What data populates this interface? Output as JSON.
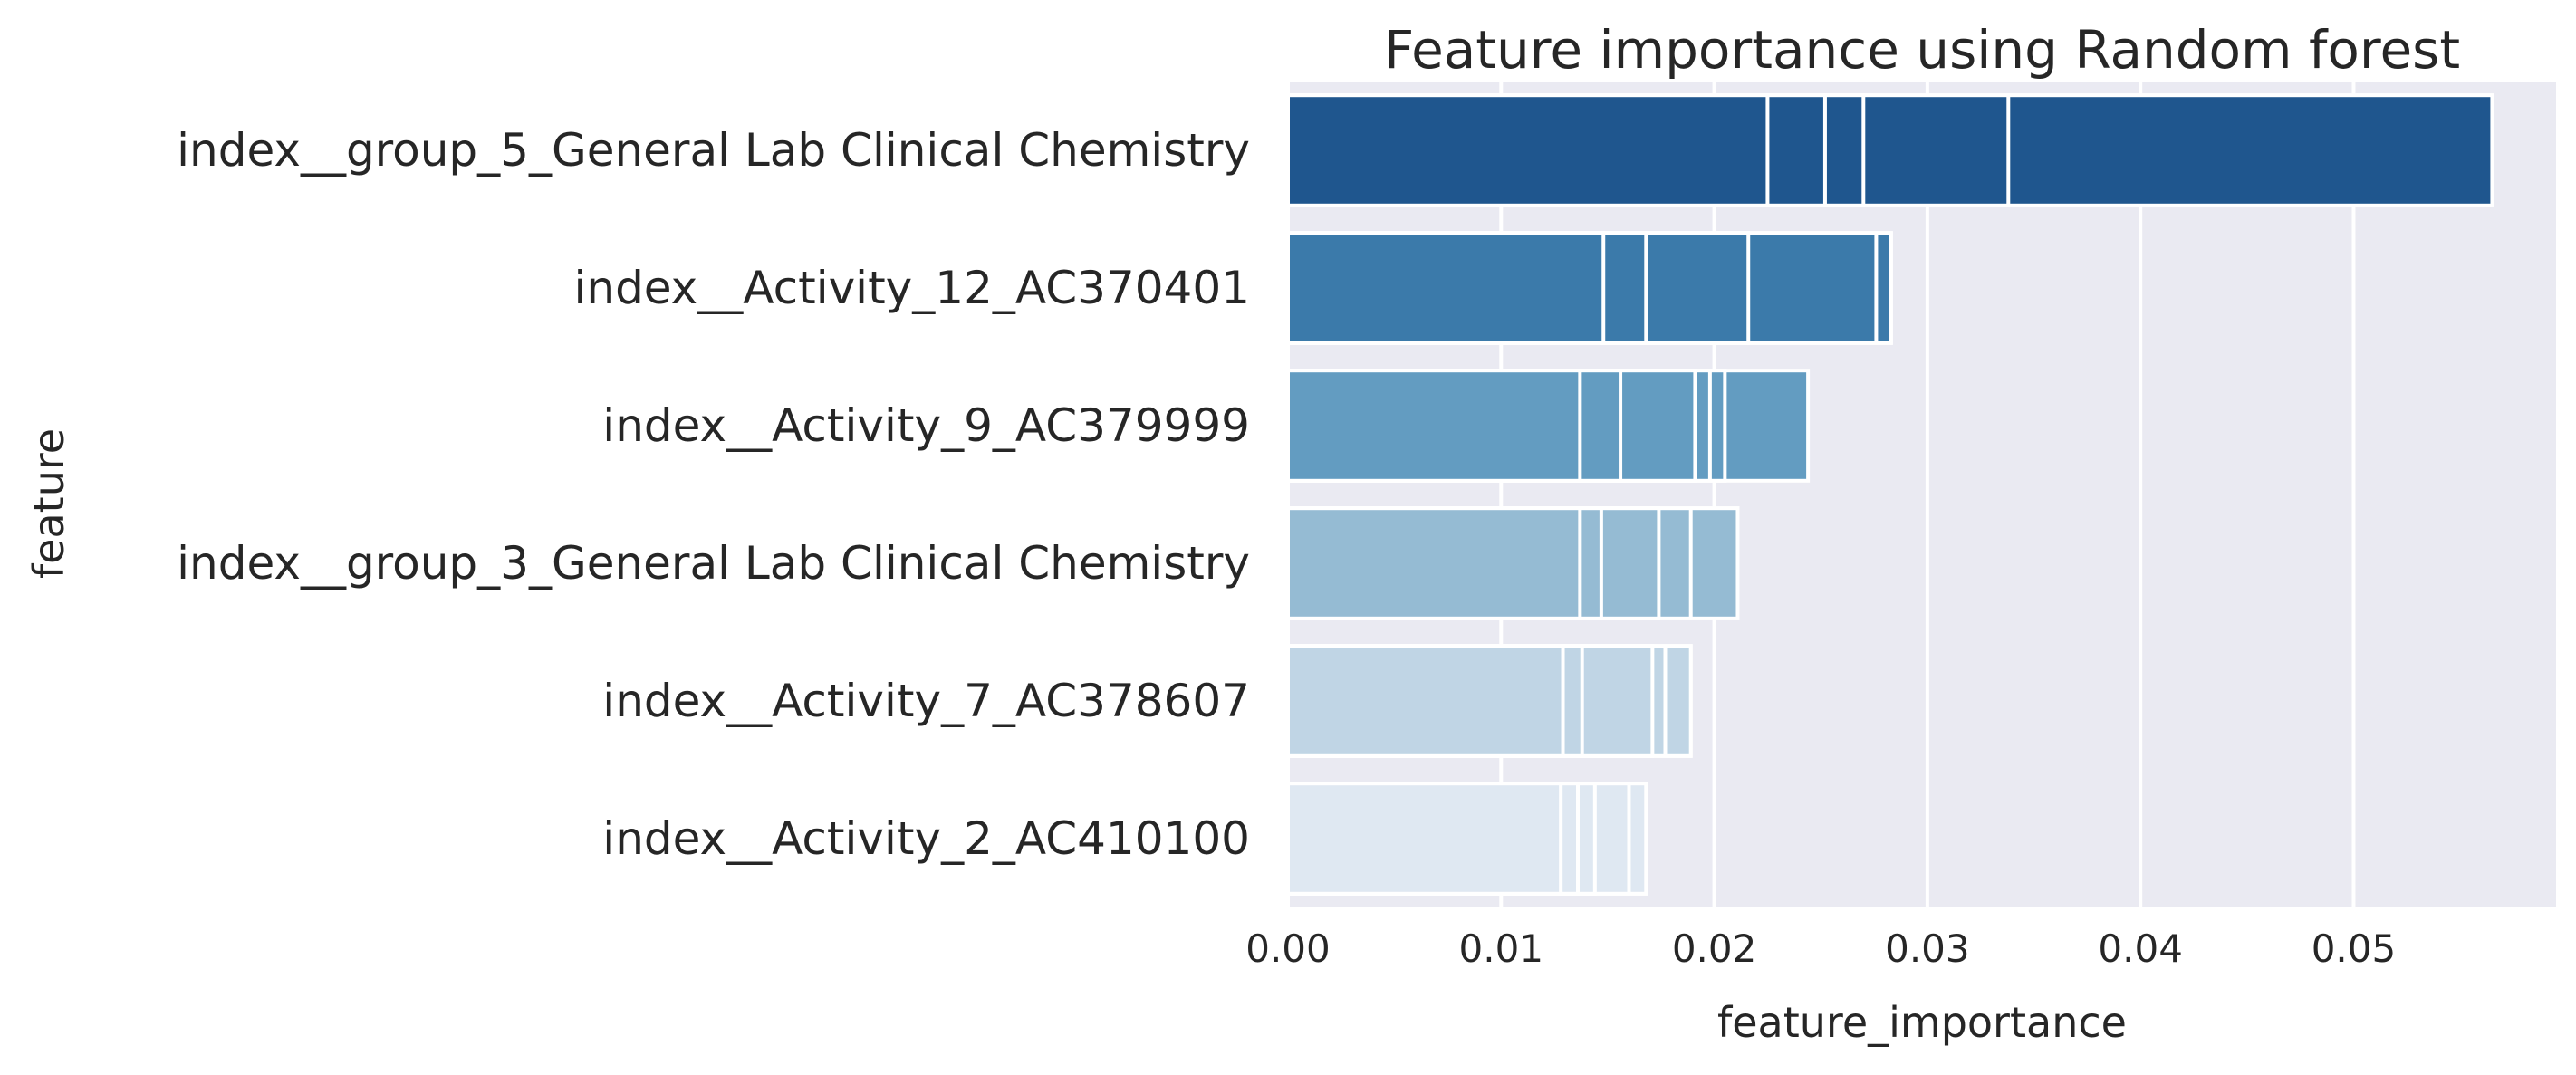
{
  "chart_data": {
    "type": "bar",
    "orientation": "horizontal",
    "title": "Feature importance using Random forest",
    "xlabel": "feature_importance",
    "ylabel": "feature",
    "xlim": [
      0,
      0.0595
    ],
    "xticks": [
      0.0,
      0.01,
      0.02,
      0.03,
      0.04,
      0.05
    ],
    "xtick_labels": [
      "0.00",
      "0.01",
      "0.02",
      "0.03",
      "0.04",
      "0.05"
    ],
    "grid": true,
    "background": "#eaeaf2",
    "categories": [
      "index__group_5_General Lab Clinical Chemistry",
      "index__Activity_12_AC370401",
      "index__Activity_9_AC379999",
      "index__group_3_General Lab Clinical Chemistry",
      "index__Activity_7_AC378607",
      "index__Activity_2_AC410100"
    ],
    "colors": [
      "#1f568e",
      "#3b7aaa",
      "#639cc1",
      "#95bbd3",
      "#c0d5e5",
      "#dfe8f2"
    ],
    "series": [
      {
        "values": [
          0.0225,
          0.0148,
          0.0137,
          0.0137,
          0.0129,
          0.0128
        ]
      },
      {
        "values": [
          0.0252,
          0.0168,
          0.0156,
          0.0147,
          0.0138,
          0.0136
        ]
      },
      {
        "values": [
          0.027,
          0.0216,
          0.0191,
          0.0174,
          0.0171,
          0.0144
        ]
      },
      {
        "values": [
          0.0338,
          0.0276,
          0.0198,
          0.0189,
          0.0177,
          0.016
        ]
      },
      {
        "values": [
          0.0565,
          0.0283,
          0.0205,
          0.0211,
          0.0189,
          0.0168
        ]
      },
      {
        "values": [
          0.0565,
          0.0283,
          0.0244,
          0.0211,
          0.0189,
          0.0168
        ]
      }
    ]
  }
}
